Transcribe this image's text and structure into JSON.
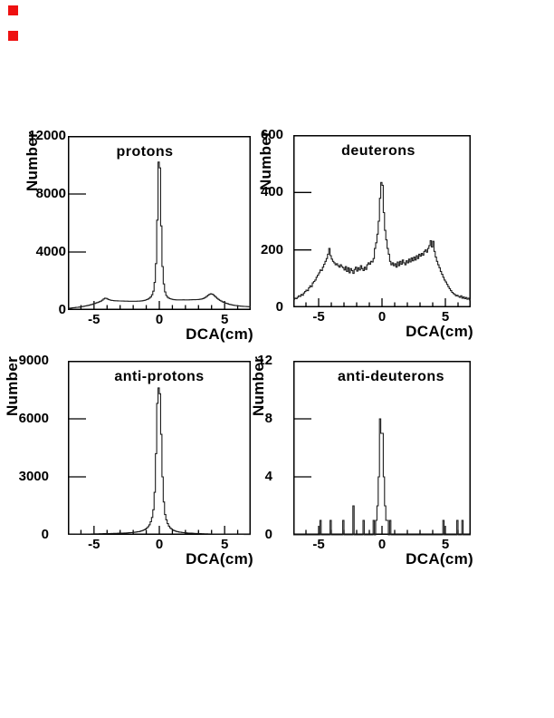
{
  "page": {
    "markers": {
      "color": "#ee1111"
    }
  },
  "chart_data": [
    {
      "type": "bar",
      "style": "step-histogram",
      "title": "protons",
      "ylabel": "Number",
      "xlabel": "DCA(cm)",
      "x_range": [
        -7,
        7
      ],
      "bin_width": 0.1,
      "ylim": [
        0,
        12000
      ],
      "yticks": [
        0,
        4000,
        8000,
        12000
      ],
      "xticks": [
        -5,
        0,
        5
      ],
      "minor_xtick_step": 1,
      "grid": false,
      "values": [
        120,
        130,
        140,
        150,
        160,
        170,
        180,
        190,
        200,
        215,
        230,
        245,
        260,
        280,
        300,
        320,
        340,
        365,
        390,
        420,
        450,
        480,
        510,
        545,
        580,
        620,
        680,
        760,
        820,
        800,
        760,
        720,
        690,
        670,
        655,
        645,
        640,
        635,
        630,
        628,
        625,
        620,
        618,
        615,
        612,
        610,
        608,
        607,
        606,
        605,
        605,
        606,
        608,
        610,
        615,
        620,
        630,
        645,
        665,
        690,
        720,
        760,
        820,
        900,
        1050,
        1300,
        1900,
        3200,
        6200,
        10200,
        9800,
        5800,
        3000,
        1800,
        1250,
        1000,
        880,
        820,
        780,
        750,
        730,
        715,
        705,
        700,
        700,
        702,
        698,
        700,
        705,
        700,
        698,
        700,
        703,
        705,
        708,
        710,
        712,
        715,
        718,
        722,
        730,
        745,
        760,
        790,
        830,
        880,
        950,
        1020,
        1080,
        1120,
        1100,
        1050,
        960,
        880,
        800,
        730,
        670,
        620,
        570,
        530,
        490,
        460,
        430,
        400,
        380,
        360,
        340,
        325,
        310,
        300,
        290,
        280,
        270,
        262,
        255,
        248,
        242,
        237,
        233,
        230
      ]
    },
    {
      "type": "bar",
      "style": "step-histogram",
      "title": "deuterons",
      "ylabel": "Number",
      "xlabel": "DCA(cm)",
      "x_range": [
        -7,
        7
      ],
      "bin_width": 0.1,
      "ylim": [
        0,
        600
      ],
      "yticks": [
        0,
        200,
        400,
        600
      ],
      "xticks": [
        -5,
        0,
        5
      ],
      "minor_xtick_step": 1,
      "grid": false,
      "values": [
        28,
        32,
        30,
        35,
        40,
        38,
        45,
        42,
        50,
        55,
        60,
        58,
        68,
        75,
        72,
        85,
        90,
        95,
        105,
        112,
        120,
        130,
        128,
        140,
        150,
        160,
        170,
        185,
        205,
        180,
        168,
        160,
        155,
        148,
        152,
        145,
        140,
        148,
        142,
        138,
        130,
        142,
        125,
        138,
        120,
        135,
        128,
        118,
        132,
        140,
        126,
        138,
        130,
        145,
        135,
        128,
        140,
        132,
        148,
        155,
        150,
        160,
        158,
        170,
        205,
        225,
        255,
        300,
        380,
        435,
        425,
        330,
        268,
        235,
        205,
        185,
        160,
        148,
        155,
        145,
        152,
        140,
        158,
        145,
        160,
        150,
        165,
        155,
        148,
        162,
        155,
        168,
        158,
        172,
        162,
        175,
        165,
        180,
        170,
        185,
        178,
        188,
        182,
        195,
        200,
        192,
        205,
        215,
        232,
        210,
        230,
        195,
        175,
        160,
        148,
        138,
        125,
        115,
        105,
        95,
        88,
        80,
        72,
        65,
        58,
        52,
        48,
        45,
        40,
        42,
        38,
        35,
        40,
        32,
        36,
        30,
        34,
        28,
        32,
        26
      ]
    },
    {
      "type": "bar",
      "style": "step-histogram",
      "title": "anti-protons",
      "ylabel": "Number",
      "xlabel": "DCA(cm)",
      "x_range": [
        -7,
        7
      ],
      "bin_width": 0.1,
      "ylim": [
        0,
        9000
      ],
      "yticks": [
        0,
        3000,
        6000,
        9000
      ],
      "xticks": [
        -5,
        0,
        5
      ],
      "minor_xtick_step": 1,
      "grid": false,
      "values": [
        30,
        32,
        35,
        33,
        36,
        38,
        35,
        40,
        38,
        42,
        40,
        44,
        42,
        45,
        44,
        46,
        48,
        47,
        50,
        52,
        54,
        56,
        55,
        58,
        60,
        62,
        60,
        64,
        66,
        65,
        68,
        70,
        72,
        74,
        76,
        78,
        80,
        82,
        85,
        88,
        90,
        92,
        95,
        98,
        100,
        104,
        108,
        112,
        118,
        124,
        130,
        138,
        148,
        158,
        170,
        185,
        205,
        230,
        260,
        300,
        350,
        420,
        520,
        680,
        900,
        1300,
        2200,
        4200,
        6800,
        7600,
        7300,
        5200,
        3000,
        1700,
        1050,
        780,
        580,
        450,
        360,
        300,
        255,
        220,
        195,
        175,
        158,
        145,
        135,
        126,
        118,
        112,
        106,
        100,
        96,
        92,
        88,
        84,
        80,
        77,
        74,
        70,
        66,
        64,
        62,
        60,
        58,
        56,
        54,
        52,
        50,
        48,
        46,
        45,
        44,
        43,
        42,
        41,
        40,
        39,
        38,
        37,
        36,
        35,
        34,
        33,
        32,
        31,
        30,
        29,
        28,
        27,
        26,
        25,
        24,
        23,
        22,
        21,
        20,
        20,
        19,
        18
      ]
    },
    {
      "type": "bar",
      "style": "step-histogram",
      "title": "anti-deuterons",
      "ylabel": "Number",
      "xlabel": "DCA(cm)",
      "x_range": [
        -7,
        7
      ],
      "bin_width": 0.1,
      "ylim": [
        0,
        12
      ],
      "yticks": [
        0,
        4,
        8,
        12
      ],
      "xticks": [
        -5,
        0,
        5
      ],
      "minor_xtick_step": 1,
      "grid": false,
      "values": [
        0,
        0,
        0,
        0,
        0,
        0,
        0,
        0,
        0,
        0,
        0,
        0,
        0,
        0,
        0,
        0,
        0,
        0,
        0,
        0,
        0,
        1,
        0,
        0,
        0,
        0,
        0,
        0,
        0,
        1,
        0,
        0,
        0,
        0,
        0,
        0,
        0,
        0,
        0,
        1,
        0,
        0,
        0,
        0,
        0,
        0,
        0,
        2,
        0,
        0,
        0,
        0,
        0,
        0,
        0,
        1,
        0,
        0,
        0,
        0,
        0,
        0,
        0,
        1,
        0,
        1,
        2,
        4,
        8,
        7,
        7,
        4,
        2,
        1,
        1,
        0,
        1,
        0,
        0,
        0,
        0,
        0,
        0,
        0,
        0,
        0,
        0,
        0,
        0,
        0,
        0,
        0,
        0,
        0,
        0,
        0,
        0,
        0,
        0,
        0,
        0,
        0,
        0,
        0,
        0,
        0,
        0,
        0,
        0,
        0,
        0,
        0,
        0,
        0,
        0,
        0,
        0,
        0,
        1,
        0,
        0,
        0,
        0,
        0,
        0,
        0,
        0,
        0,
        0,
        1,
        0,
        0,
        0,
        1,
        0,
        0,
        0,
        0,
        0,
        0
      ]
    }
  ]
}
